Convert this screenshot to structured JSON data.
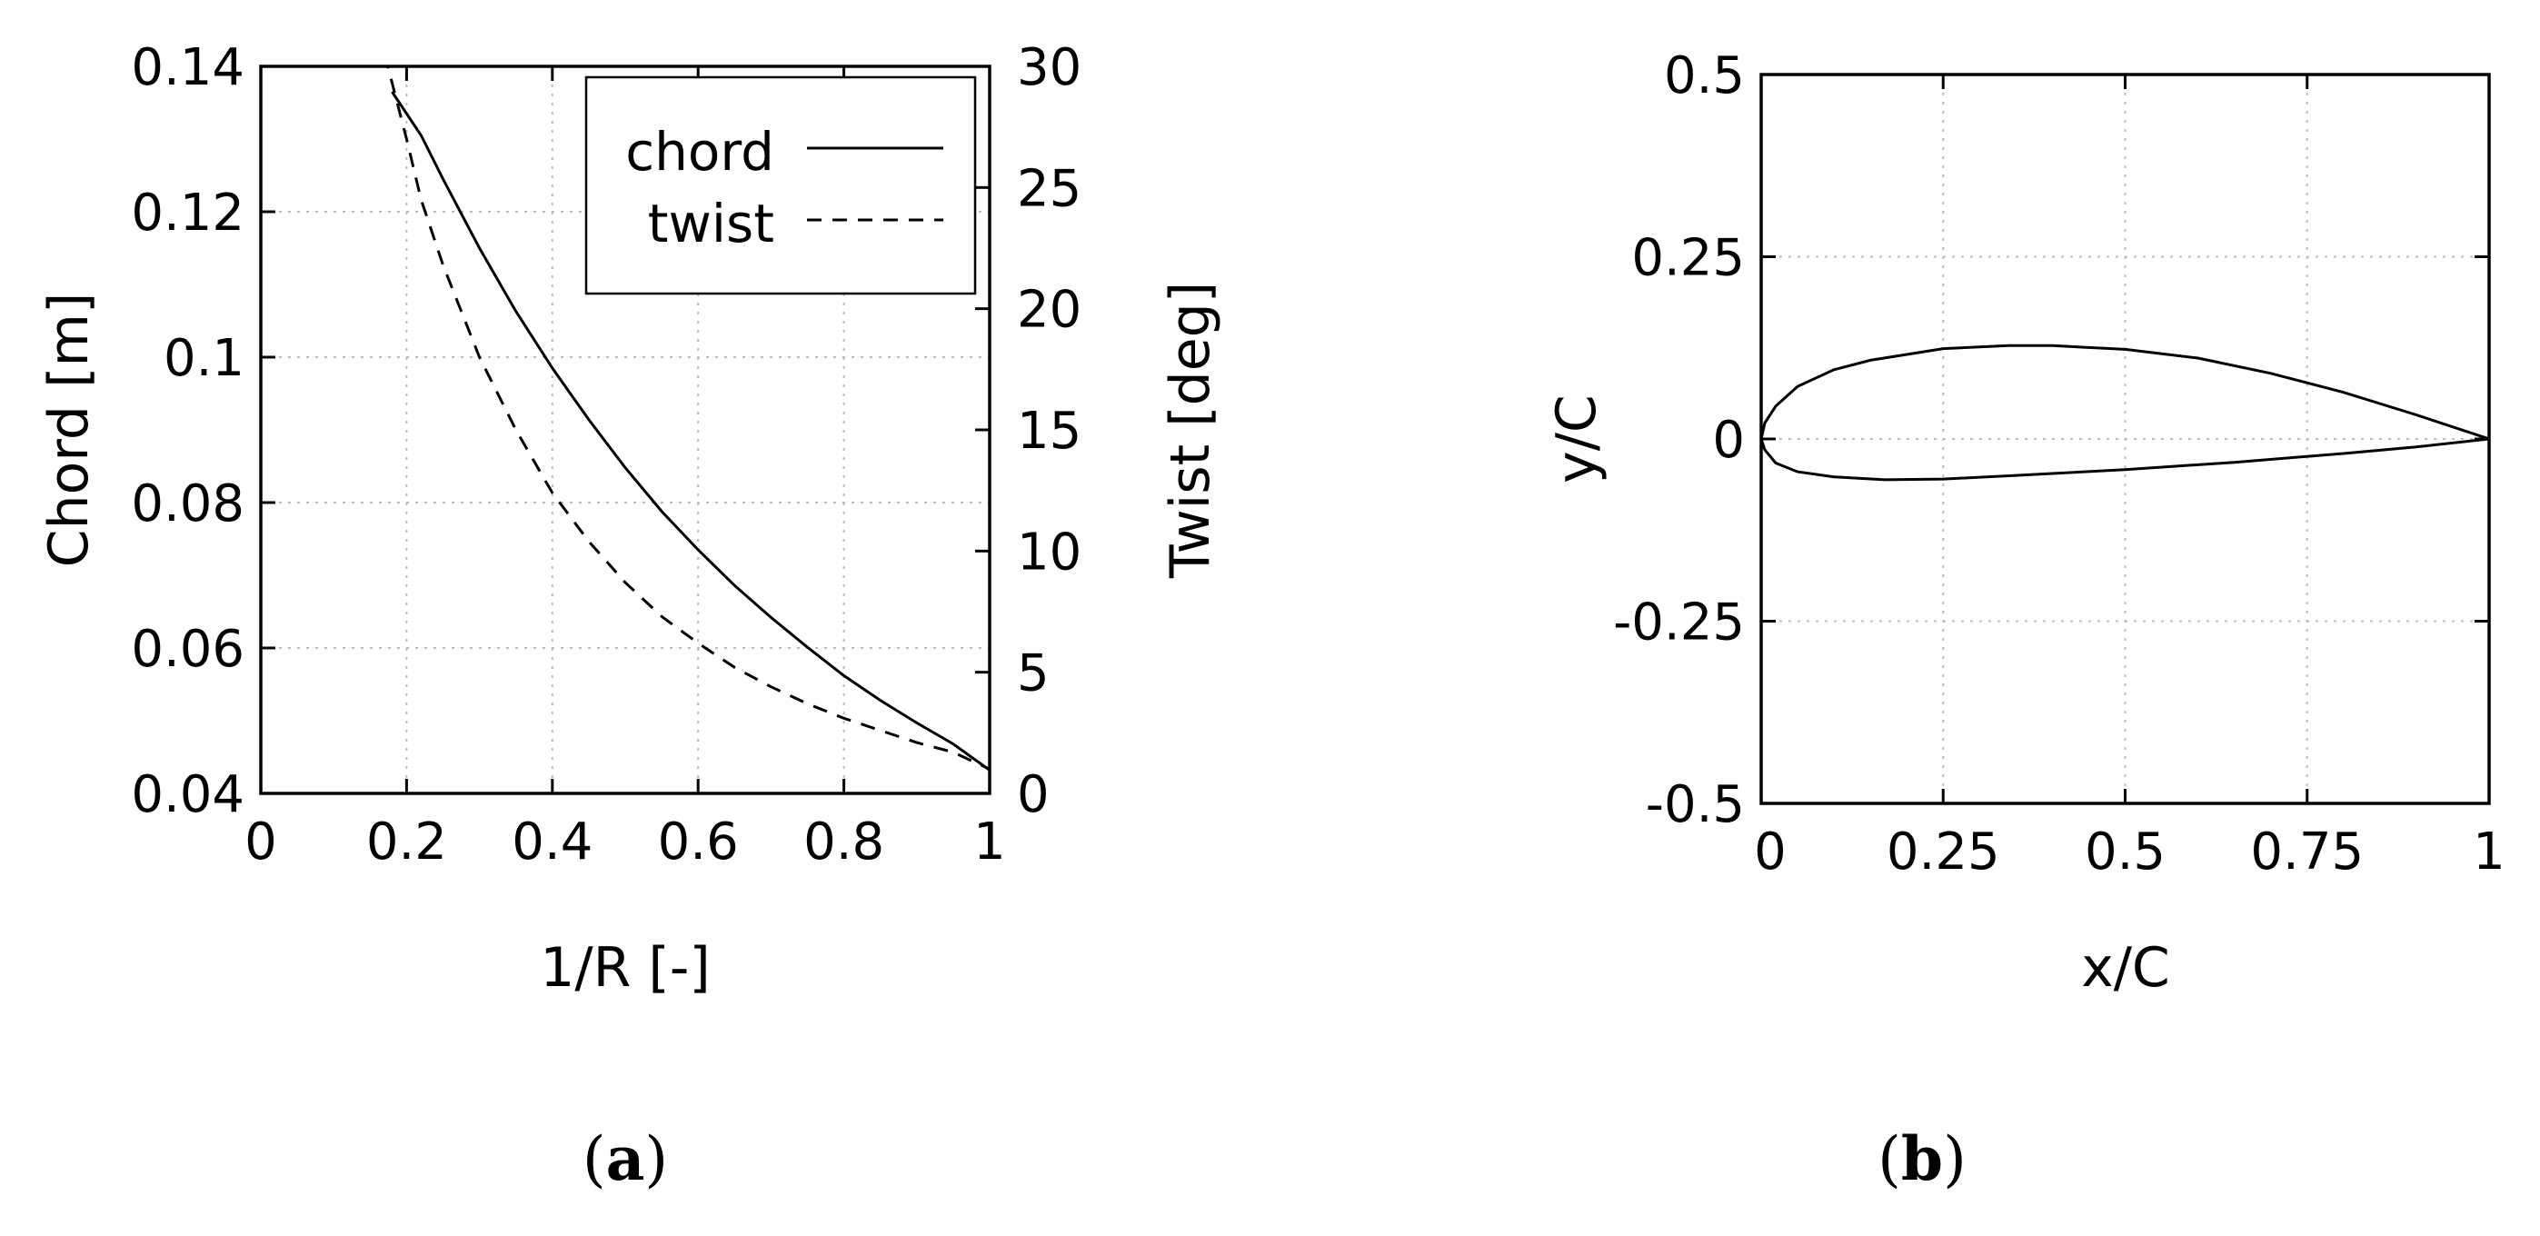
{
  "chart_data": [
    {
      "type": "line",
      "panel_label": "a",
      "xlabel": "1/R [-]",
      "ylabel": "Chord [m]",
      "y2label": "Twist [deg]",
      "xlim": [
        0,
        1
      ],
      "ylim": [
        0.04,
        0.14
      ],
      "y2lim": [
        0,
        30
      ],
      "x_ticks": [
        "0",
        "0.2",
        "0.4",
        "0.6",
        "0.8",
        "1"
      ],
      "y_ticks": [
        "0.04",
        "0.06",
        "0.08",
        "0.1",
        "0.12",
        "0.14"
      ],
      "y2_ticks": [
        "0",
        "5",
        "10",
        "15",
        "20",
        "25",
        "30"
      ],
      "grid": true,
      "legend_position": "top-right",
      "series": [
        {
          "name": "chord",
          "axis": "left",
          "style": "solid",
          "x": [
            0.18,
            0.2,
            0.22,
            0.25,
            0.3,
            0.35,
            0.4,
            0.45,
            0.5,
            0.55,
            0.6,
            0.65,
            0.7,
            0.75,
            0.8,
            0.85,
            0.9,
            0.95,
            1.0
          ],
          "y": [
            0.1365,
            0.1335,
            0.1305,
            0.1245,
            0.115,
            0.1063,
            0.0985,
            0.0914,
            0.0848,
            0.0788,
            0.0735,
            0.0686,
            0.0642,
            0.0601,
            0.0562,
            0.0528,
            0.0497,
            0.0468,
            0.0432
          ]
        },
        {
          "name": "twist",
          "axis": "right",
          "style": "dashed",
          "x": [
            0.17,
            0.2,
            0.22,
            0.25,
            0.3,
            0.35,
            0.4,
            0.45,
            0.5,
            0.55,
            0.6,
            0.65,
            0.7,
            0.75,
            0.8,
            0.85,
            0.9,
            0.95,
            1.0
          ],
          "y": [
            30.5,
            27.0,
            24.5,
            21.8,
            18.0,
            15.0,
            12.4,
            10.4,
            8.7,
            7.3,
            6.2,
            5.2,
            4.4,
            3.7,
            3.1,
            2.6,
            2.1,
            1.7,
            1.0
          ]
        }
      ]
    },
    {
      "type": "line",
      "panel_label": "b",
      "xlabel": "x/C",
      "ylabel": "y/C",
      "xlim": [
        0,
        1
      ],
      "ylim": [
        -0.5,
        0.5
      ],
      "x_ticks": [
        "0",
        "0.25",
        "0.5",
        "0.75",
        "1"
      ],
      "y_ticks": [
        "-0.5",
        "-0.25",
        "0",
        "0.25",
        "0.5"
      ],
      "grid": true,
      "series": [
        {
          "style": "solid",
          "x": [
            1.0,
            0.9,
            0.8,
            0.7,
            0.6,
            0.5,
            0.4,
            0.34,
            0.25,
            0.15,
            0.1,
            0.05,
            0.02,
            0.005,
            0.0,
            0.005,
            0.02,
            0.05,
            0.1,
            0.17,
            0.25,
            0.35,
            0.5,
            0.65,
            0.8,
            0.9,
            1.0
          ],
          "y": [
            0.0,
            0.033,
            0.064,
            0.09,
            0.111,
            0.123,
            0.128,
            0.128,
            0.124,
            0.108,
            0.095,
            0.072,
            0.045,
            0.022,
            0.0,
            -0.015,
            -0.033,
            -0.045,
            -0.052,
            -0.056,
            -0.055,
            -0.05,
            -0.042,
            -0.032,
            -0.02,
            -0.011,
            0.0
          ]
        }
      ]
    }
  ]
}
